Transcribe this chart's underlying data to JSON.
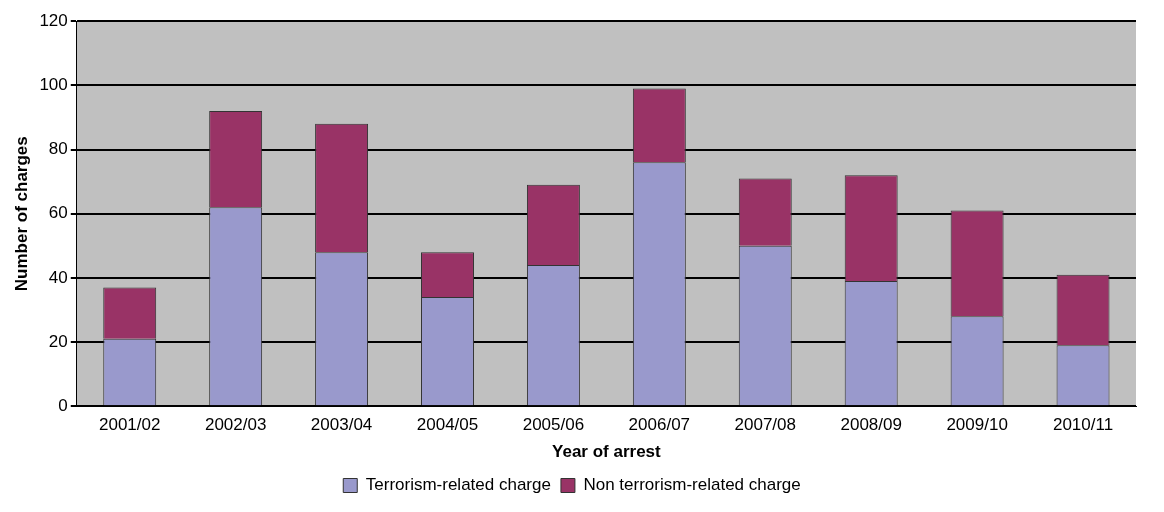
{
  "chart_data": {
    "type": "bar",
    "xlabel": "Year of arrest",
    "ylabel": "Number of charges",
    "categories": [
      "2001/02",
      "2002/03",
      "2003/04",
      "2004/05",
      "2005/06",
      "2006/07",
      "2007/08",
      "2008/09",
      "2009/10",
      "2010/11"
    ],
    "series": [
      {
        "name": "Terrorism-related charge",
        "color": "#9999cc",
        "values": [
          21,
          62,
          48,
          34,
          44,
          76,
          50,
          39,
          28,
          19
        ]
      },
      {
        "name": "Non terrorism-related charge",
        "color": "#993366",
        "values": [
          16,
          30,
          40,
          14,
          25,
          23,
          21,
          33,
          33,
          22
        ]
      }
    ],
    "stacked": true,
    "ylim": [
      0,
      120
    ],
    "yticks": [
      0,
      20,
      40,
      60,
      80,
      100,
      120
    ],
    "grid": "y",
    "legend": "bottom"
  }
}
